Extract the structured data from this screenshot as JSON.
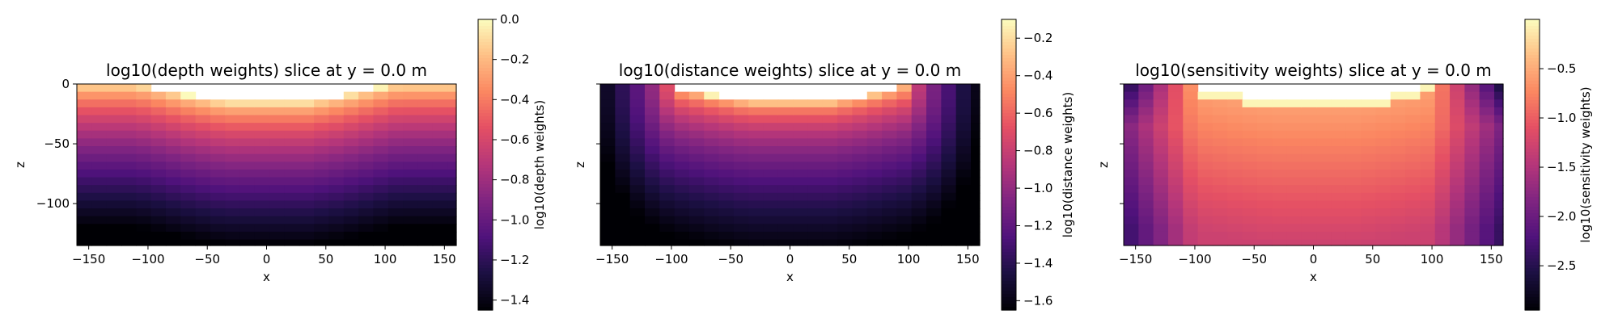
{
  "chart_data": [
    {
      "type": "heatmap",
      "title": "log10(depth weights) slice at y = 0.0 m",
      "xlabel": "x",
      "ylabel": "z",
      "xlim": [
        -160,
        160
      ],
      "ylim": [
        -135,
        0
      ],
      "xticks": [
        -150,
        -100,
        -50,
        0,
        50,
        100,
        150
      ],
      "xtick_labels": [
        "−150",
        "−100",
        "−50",
        "0",
        "50",
        "100",
        "150"
      ],
      "yticks": [
        0,
        -50,
        -100
      ],
      "ytick_labels": [
        "0",
        "−50",
        "−100"
      ],
      "colorbar": {
        "label": "log10(depth weights)",
        "range": [
          -1.45,
          0.0
        ],
        "ticks": [
          0.0,
          -0.2,
          -0.4,
          -0.6,
          -0.8,
          -1.0,
          -1.2,
          -1.4
        ],
        "tick_labels": [
          "0.0",
          "−0.2",
          "−0.4",
          "−0.6",
          "−0.8",
          "−1.0",
          "−1.2",
          "−1.4"
        ]
      },
      "colormap": "magma",
      "field": "depth",
      "cell_size": [
        12.5,
        6.5
      ],
      "surface_profile": {
        "x": [
          -160,
          -110,
          -65,
          -35,
          35,
          65,
          110,
          160
        ],
        "z": [
          0,
          0,
          -10,
          -15,
          -15,
          -10,
          0,
          0
        ]
      }
    },
    {
      "type": "heatmap",
      "title": "log10(distance weights) slice at y = 0.0 m",
      "xlabel": "x",
      "ylabel": "z",
      "xlim": [
        -160,
        160
      ],
      "ylim": [
        -135,
        0
      ],
      "xticks": [
        -150,
        -100,
        -50,
        0,
        50,
        100,
        150
      ],
      "xtick_labels": [
        "−150",
        "−100",
        "−50",
        "0",
        "50",
        "100",
        "150"
      ],
      "yticks": [
        0,
        -50,
        -100
      ],
      "ytick_labels": [
        "",
        "",
        ""
      ],
      "colorbar": {
        "label": "log10(distance weights)",
        "range": [
          -1.65,
          -0.1
        ],
        "ticks": [
          -0.2,
          -0.4,
          -0.6,
          -0.8,
          -1.0,
          -1.2,
          -1.4,
          -1.6
        ],
        "tick_labels": [
          "−0.2",
          "−0.4",
          "−0.6",
          "−0.8",
          "−1.0",
          "−1.2",
          "−1.4",
          "−1.6"
        ]
      },
      "colormap": "magma",
      "field": "distance",
      "cell_size": [
        12.5,
        6.5
      ],
      "surface_profile": {
        "x": [
          -160,
          -110,
          -65,
          -35,
          35,
          65,
          110,
          160
        ],
        "z": [
          0,
          0,
          -10,
          -15,
          -15,
          -10,
          0,
          0
        ]
      }
    },
    {
      "type": "heatmap",
      "title": "log10(sensitivity weights) slice at y = 0.0 m",
      "xlabel": "x",
      "ylabel": "z",
      "xlim": [
        -160,
        160
      ],
      "ylim": [
        -135,
        0
      ],
      "xticks": [
        -150,
        -100,
        -50,
        0,
        50,
        100,
        150
      ],
      "xtick_labels": [
        "−150",
        "−100",
        "−50",
        "0",
        "50",
        "100",
        "150"
      ],
      "yticks": [
        0,
        -50,
        -100
      ],
      "ytick_labels": [
        "",
        "",
        ""
      ],
      "colorbar": {
        "label": "log10(sensitivity weights)",
        "range": [
          -2.95,
          0.0
        ],
        "ticks": [
          -0.5,
          -1.0,
          -1.5,
          -2.0,
          -2.5
        ],
        "tick_labels": [
          "−0.5",
          "−1.0",
          "−1.5",
          "−2.0",
          "−2.5"
        ]
      },
      "colormap": "magma",
      "field": "sensitivity",
      "cell_size": [
        12.5,
        6.5
      ],
      "surface_profile": {
        "x": [
          -160,
          -110,
          -65,
          -35,
          35,
          65,
          110,
          160
        ],
        "z": [
          0,
          0,
          -10,
          -15,
          -15,
          -10,
          0,
          0
        ]
      }
    }
  ]
}
